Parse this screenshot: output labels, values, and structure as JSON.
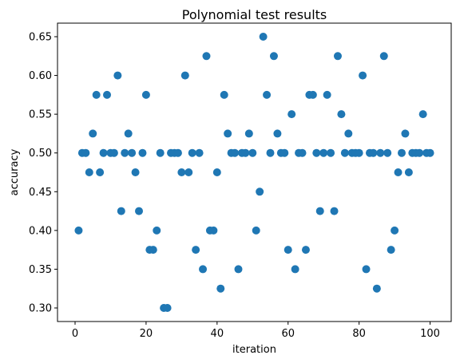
{
  "chart_data": {
    "type": "scatter",
    "title": "Polynomial test results",
    "xlabel": "iteration",
    "ylabel": "accuracy",
    "xlim": [
      -4.95,
      105.95
    ],
    "ylim": [
      0.2825,
      0.6675
    ],
    "xticks": [
      0,
      20,
      40,
      60,
      80,
      100
    ],
    "xtick_labels": [
      "0",
      "20",
      "40",
      "60",
      "80",
      "100"
    ],
    "yticks": [
      0.3,
      0.35,
      0.4,
      0.45,
      0.5,
      0.55,
      0.6,
      0.65
    ],
    "ytick_labels": [
      "0.30",
      "0.35",
      "0.40",
      "0.45",
      "0.50",
      "0.55",
      "0.60",
      "0.65"
    ],
    "grid": false,
    "marker_color": "#1f77b4",
    "points": [
      {
        "x": 1,
        "y": 0.4
      },
      {
        "x": 2,
        "y": 0.5
      },
      {
        "x": 3,
        "y": 0.5
      },
      {
        "x": 4,
        "y": 0.475
      },
      {
        "x": 5,
        "y": 0.525
      },
      {
        "x": 6,
        "y": 0.575
      },
      {
        "x": 7,
        "y": 0.475
      },
      {
        "x": 8,
        "y": 0.5
      },
      {
        "x": 9,
        "y": 0.575
      },
      {
        "x": 10,
        "y": 0.5
      },
      {
        "x": 11,
        "y": 0.5
      },
      {
        "x": 12,
        "y": 0.6
      },
      {
        "x": 13,
        "y": 0.425
      },
      {
        "x": 14,
        "y": 0.5
      },
      {
        "x": 15,
        "y": 0.525
      },
      {
        "x": 16,
        "y": 0.5
      },
      {
        "x": 17,
        "y": 0.475
      },
      {
        "x": 18,
        "y": 0.425
      },
      {
        "x": 19,
        "y": 0.5
      },
      {
        "x": 20,
        "y": 0.575
      },
      {
        "x": 21,
        "y": 0.375
      },
      {
        "x": 22,
        "y": 0.375
      },
      {
        "x": 23,
        "y": 0.4
      },
      {
        "x": 24,
        "y": 0.5
      },
      {
        "x": 25,
        "y": 0.3
      },
      {
        "x": 26,
        "y": 0.3
      },
      {
        "x": 27,
        "y": 0.5
      },
      {
        "x": 28,
        "y": 0.5
      },
      {
        "x": 29,
        "y": 0.5
      },
      {
        "x": 30,
        "y": 0.475
      },
      {
        "x": 31,
        "y": 0.6
      },
      {
        "x": 32,
        "y": 0.475
      },
      {
        "x": 33,
        "y": 0.5
      },
      {
        "x": 34,
        "y": 0.375
      },
      {
        "x": 35,
        "y": 0.5
      },
      {
        "x": 36,
        "y": 0.35
      },
      {
        "x": 37,
        "y": 0.625
      },
      {
        "x": 38,
        "y": 0.4
      },
      {
        "x": 39,
        "y": 0.4
      },
      {
        "x": 40,
        "y": 0.475
      },
      {
        "x": 41,
        "y": 0.325
      },
      {
        "x": 42,
        "y": 0.575
      },
      {
        "x": 43,
        "y": 0.525
      },
      {
        "x": 44,
        "y": 0.5
      },
      {
        "x": 45,
        "y": 0.5
      },
      {
        "x": 46,
        "y": 0.35
      },
      {
        "x": 47,
        "y": 0.5
      },
      {
        "x": 48,
        "y": 0.5
      },
      {
        "x": 49,
        "y": 0.525
      },
      {
        "x": 50,
        "y": 0.5
      },
      {
        "x": 51,
        "y": 0.4
      },
      {
        "x": 52,
        "y": 0.45
      },
      {
        "x": 53,
        "y": 0.65
      },
      {
        "x": 54,
        "y": 0.575
      },
      {
        "x": 55,
        "y": 0.5
      },
      {
        "x": 56,
        "y": 0.625
      },
      {
        "x": 57,
        "y": 0.525
      },
      {
        "x": 58,
        "y": 0.5
      },
      {
        "x": 59,
        "y": 0.5
      },
      {
        "x": 60,
        "y": 0.375
      },
      {
        "x": 61,
        "y": 0.55
      },
      {
        "x": 62,
        "y": 0.35
      },
      {
        "x": 63,
        "y": 0.5
      },
      {
        "x": 64,
        "y": 0.5
      },
      {
        "x": 65,
        "y": 0.375
      },
      {
        "x": 66,
        "y": 0.575
      },
      {
        "x": 67,
        "y": 0.575
      },
      {
        "x": 68,
        "y": 0.5
      },
      {
        "x": 69,
        "y": 0.425
      },
      {
        "x": 70,
        "y": 0.5
      },
      {
        "x": 71,
        "y": 0.575
      },
      {
        "x": 72,
        "y": 0.5
      },
      {
        "x": 73,
        "y": 0.425
      },
      {
        "x": 74,
        "y": 0.625
      },
      {
        "x": 75,
        "y": 0.55
      },
      {
        "x": 76,
        "y": 0.5
      },
      {
        "x": 77,
        "y": 0.525
      },
      {
        "x": 78,
        "y": 0.5
      },
      {
        "x": 79,
        "y": 0.5
      },
      {
        "x": 80,
        "y": 0.5
      },
      {
        "x": 81,
        "y": 0.6
      },
      {
        "x": 82,
        "y": 0.35
      },
      {
        "x": 83,
        "y": 0.5
      },
      {
        "x": 84,
        "y": 0.5
      },
      {
        "x": 85,
        "y": 0.325
      },
      {
        "x": 86,
        "y": 0.5
      },
      {
        "x": 87,
        "y": 0.625
      },
      {
        "x": 88,
        "y": 0.5
      },
      {
        "x": 89,
        "y": 0.375
      },
      {
        "x": 90,
        "y": 0.4
      },
      {
        "x": 91,
        "y": 0.475
      },
      {
        "x": 92,
        "y": 0.5
      },
      {
        "x": 93,
        "y": 0.525
      },
      {
        "x": 94,
        "y": 0.475
      },
      {
        "x": 95,
        "y": 0.5
      },
      {
        "x": 96,
        "y": 0.5
      },
      {
        "x": 97,
        "y": 0.5
      },
      {
        "x": 98,
        "y": 0.55
      },
      {
        "x": 99,
        "y": 0.5
      },
      {
        "x": 100,
        "y": 0.5
      }
    ]
  }
}
